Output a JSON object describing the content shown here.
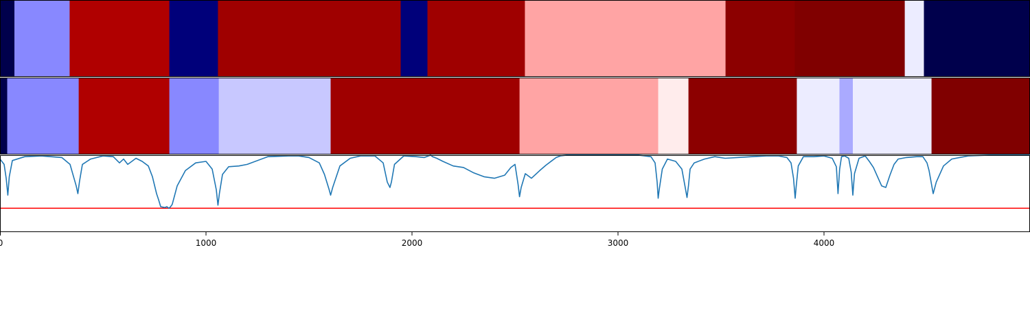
{
  "chart_data": [
    {
      "type": "heatmap",
      "panel": "top-strip",
      "xlim": [
        0,
        5000
      ],
      "segments": [
        {
          "start": 0,
          "end": 70,
          "color": "#00004c"
        },
        {
          "start": 70,
          "end": 338,
          "color": "#8888ff"
        },
        {
          "start": 338,
          "end": 822,
          "color": "#b00000"
        },
        {
          "start": 822,
          "end": 1058,
          "color": "#00007a"
        },
        {
          "start": 1058,
          "end": 1945,
          "color": "#9f0000"
        },
        {
          "start": 1945,
          "end": 2075,
          "color": "#00007a"
        },
        {
          "start": 2075,
          "end": 2548,
          "color": "#9f0000"
        },
        {
          "start": 2548,
          "end": 3522,
          "color": "#ffa4a4"
        },
        {
          "start": 3522,
          "end": 3858,
          "color": "#8c0000"
        },
        {
          "start": 3858,
          "end": 4392,
          "color": "#800000"
        },
        {
          "start": 4392,
          "end": 4485,
          "color": "#ececff"
        },
        {
          "start": 4485,
          "end": 5000,
          "color": "#00004c"
        }
      ]
    },
    {
      "type": "heatmap",
      "panel": "middle-strip",
      "xlim": [
        0,
        5000
      ],
      "segments": [
        {
          "start": 0,
          "end": 35,
          "color": "#00004c"
        },
        {
          "start": 35,
          "end": 382,
          "color": "#8888ff"
        },
        {
          "start": 382,
          "end": 822,
          "color": "#b00000"
        },
        {
          "start": 822,
          "end": 1062,
          "color": "#8888ff"
        },
        {
          "start": 1062,
          "end": 1605,
          "color": "#c8c8ff"
        },
        {
          "start": 1605,
          "end": 2522,
          "color": "#9f0000"
        },
        {
          "start": 2522,
          "end": 3195,
          "color": "#ffa4a4"
        },
        {
          "start": 3195,
          "end": 3342,
          "color": "#ffecec"
        },
        {
          "start": 3342,
          "end": 3868,
          "color": "#8c0000"
        },
        {
          "start": 3868,
          "end": 4075,
          "color": "#ececff"
        },
        {
          "start": 4075,
          "end": 4140,
          "color": "#aaaaff"
        },
        {
          "start": 4140,
          "end": 4522,
          "color": "#ececff"
        },
        {
          "start": 4522,
          "end": 5000,
          "color": "#800000"
        }
      ]
    },
    {
      "type": "line",
      "panel": "signal",
      "xlim": [
        0,
        5000
      ],
      "ylim": [
        0,
        1
      ],
      "threshold": 0.31,
      "line_color": "#1f77b4",
      "threshold_color": "#ff0000",
      "x_ticks": [
        "0",
        "1000",
        "2000",
        "3000",
        "4000"
      ],
      "x_tick_values": [
        0,
        1000,
        2000,
        3000,
        4000
      ],
      "series": [
        {
          "x": [
            0,
            20,
            30,
            38,
            45,
            60,
            120,
            200,
            300,
            340,
            370,
            378,
            386,
            400,
            440,
            500,
            550,
            580,
            600,
            620,
            640,
            660,
            690,
            720,
            740,
            760,
            770,
            780,
            800,
            810,
            820,
            828,
            836,
            860,
            900,
            950,
            1000,
            1030,
            1050,
            1058,
            1065,
            1080,
            1110,
            1160,
            1200,
            1300,
            1400,
            1450,
            1500,
            1550,
            1575,
            1598,
            1605,
            1615,
            1650,
            1700,
            1750,
            1820,
            1860,
            1880,
            1893,
            1900,
            1915,
            1960,
            2020,
            2060,
            2090,
            2100,
            2120,
            2150,
            2200,
            2250,
            2300,
            2350,
            2400,
            2450,
            2480,
            2500,
            2515,
            2522,
            2530,
            2550,
            2580,
            2620,
            2650,
            2680,
            2700,
            2720,
            2750,
            2800,
            2900,
            3000,
            3100,
            3160,
            3180,
            3190,
            3195,
            3200,
            3215,
            3240,
            3280,
            3310,
            3325,
            3335,
            3342,
            3350,
            3370,
            3420,
            3470,
            3520,
            3580,
            3650,
            3720,
            3780,
            3820,
            3840,
            3852,
            3860,
            3866,
            3875,
            3900,
            3950,
            4000,
            4040,
            4060,
            4068,
            4076,
            4085,
            4100,
            4120,
            4132,
            4140,
            4148,
            4170,
            4200,
            4220,
            4240,
            4260,
            4280,
            4300,
            4320,
            4340,
            4360,
            4400,
            4450,
            4480,
            4500,
            4510,
            4522,
            4530,
            4545,
            4580,
            4620,
            4700,
            4800,
            4900,
            5000
          ],
          "y": [
            0.95,
            0.88,
            0.7,
            0.48,
            0.72,
            0.93,
            0.98,
            0.99,
            0.97,
            0.88,
            0.6,
            0.5,
            0.66,
            0.88,
            0.95,
            0.99,
            0.98,
            0.9,
            0.95,
            0.88,
            0.92,
            0.96,
            0.92,
            0.86,
            0.72,
            0.5,
            0.42,
            0.33,
            0.32,
            0.33,
            0.31,
            0.33,
            0.36,
            0.6,
            0.8,
            0.9,
            0.92,
            0.82,
            0.55,
            0.35,
            0.5,
            0.75,
            0.85,
            0.86,
            0.88,
            0.98,
            0.99,
            0.99,
            0.97,
            0.9,
            0.75,
            0.55,
            0.48,
            0.58,
            0.86,
            0.96,
            0.99,
            0.99,
            0.9,
            0.65,
            0.58,
            0.65,
            0.88,
            0.99,
            0.98,
            0.97,
            1.0,
            0.98,
            0.96,
            0.92,
            0.86,
            0.84,
            0.77,
            0.72,
            0.7,
            0.74,
            0.84,
            0.88,
            0.62,
            0.46,
            0.58,
            0.76,
            0.7,
            0.8,
            0.87,
            0.93,
            0.97,
            0.99,
            1.0,
            1.0,
            1.0,
            1.0,
            1.0,
            0.98,
            0.9,
            0.65,
            0.44,
            0.55,
            0.82,
            0.95,
            0.92,
            0.82,
            0.6,
            0.45,
            0.6,
            0.82,
            0.9,
            0.95,
            0.98,
            0.96,
            0.97,
            0.98,
            0.99,
            0.99,
            0.97,
            0.9,
            0.7,
            0.44,
            0.62,
            0.86,
            0.98,
            0.98,
            0.99,
            0.96,
            0.85,
            0.5,
            0.82,
            0.98,
            0.99,
            0.96,
            0.78,
            0.48,
            0.76,
            0.96,
            0.99,
            0.92,
            0.84,
            0.72,
            0.6,
            0.58,
            0.74,
            0.88,
            0.95,
            0.97,
            0.98,
            0.98,
            0.9,
            0.8,
            0.62,
            0.5,
            0.65,
            0.86,
            0.95,
            0.99,
            1.0,
            1.0,
            1.0
          ]
        }
      ]
    }
  ]
}
